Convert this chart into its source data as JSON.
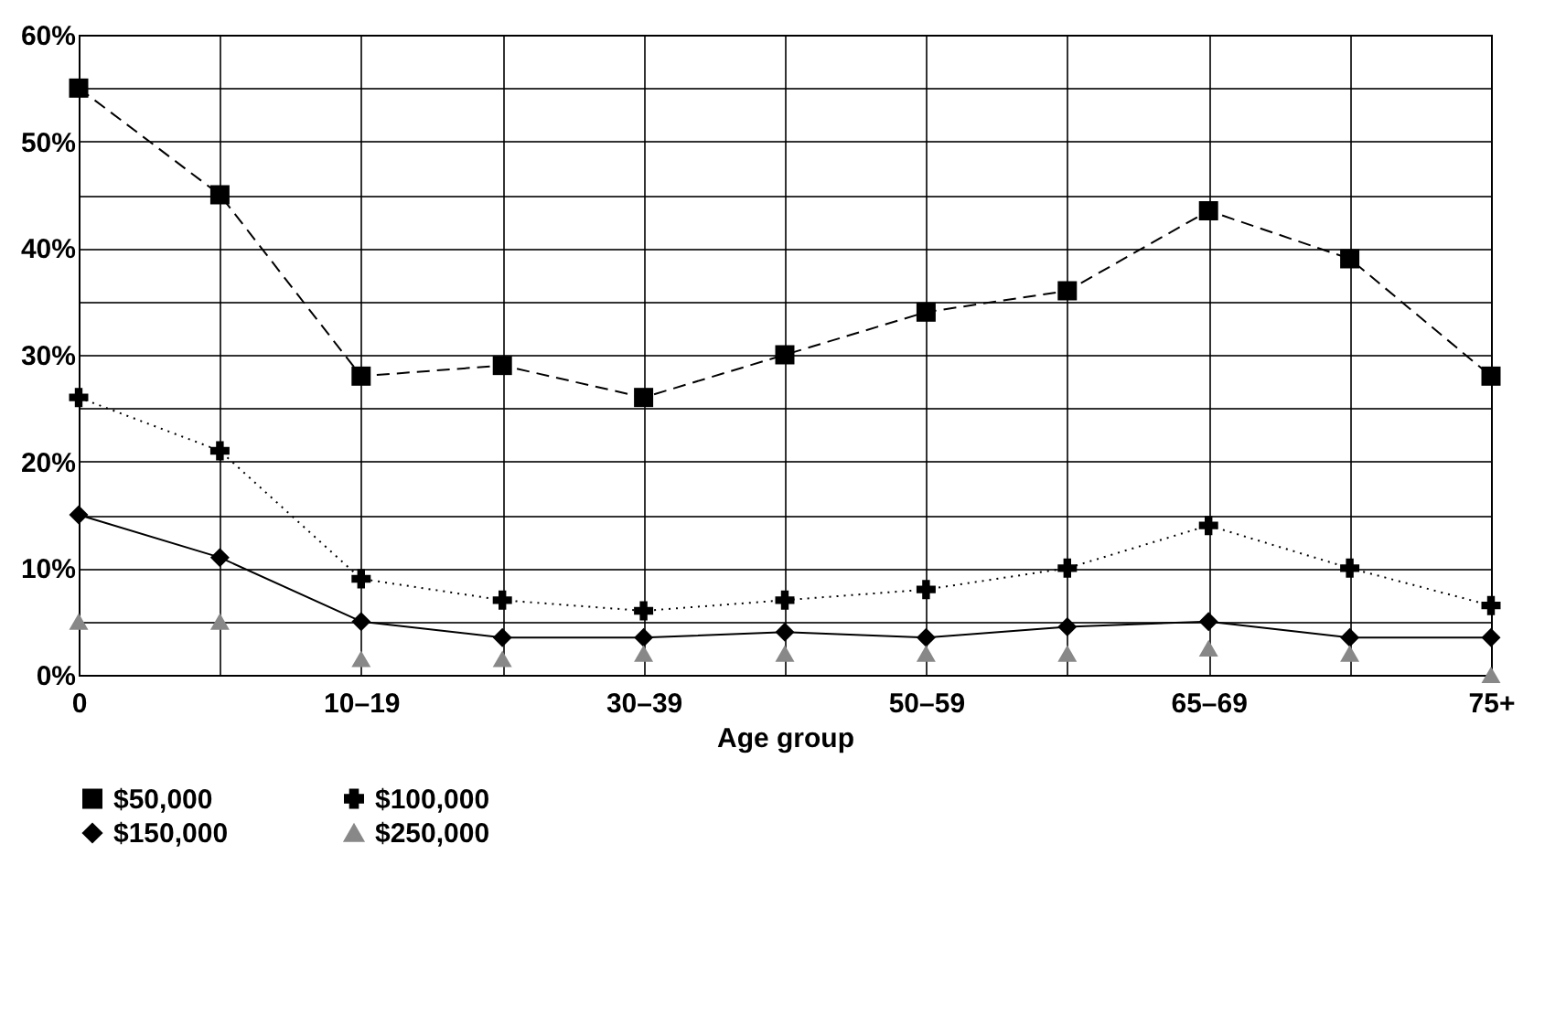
{
  "chart_data": {
    "type": "line",
    "xlabel": "Age group",
    "categories": [
      "0",
      null,
      "10–19",
      null,
      "30–39",
      null,
      "50–59",
      null,
      "65–69",
      null,
      "75+"
    ],
    "ylim": [
      0,
      60
    ],
    "yticks": [
      {
        "value": 0,
        "label": "0%"
      },
      {
        "value": 5,
        "label": null
      },
      {
        "value": 10,
        "label": "10%"
      },
      {
        "value": 15,
        "label": null
      },
      {
        "value": 20,
        "label": "20%"
      },
      {
        "value": 25,
        "label": null
      },
      {
        "value": 30,
        "label": "30%"
      },
      {
        "value": 35,
        "label": null
      },
      {
        "value": 40,
        "label": "40%"
      },
      {
        "value": 45,
        "label": null
      },
      {
        "value": 50,
        "label": "50%"
      },
      {
        "value": 55,
        "label": null
      },
      {
        "value": 60,
        "label": "60%"
      }
    ],
    "grid": true,
    "legend": "bottom",
    "series": [
      {
        "name": "$50,000",
        "color": "#000000",
        "marker": "square",
        "line_style": "dashed",
        "values": [
          55,
          45,
          28,
          29,
          26,
          30,
          34,
          36,
          43.5,
          39,
          28
        ]
      },
      {
        "name": "$100,000",
        "color": "#000000",
        "marker": "cross",
        "line_style": "dotted",
        "values": [
          26,
          21,
          9,
          7,
          6,
          7,
          8,
          10,
          14,
          10,
          6.5
        ]
      },
      {
        "name": "$150,000",
        "color": "#000000",
        "marker": "diamond",
        "line_style": "solid",
        "values": [
          15,
          11,
          5,
          3.5,
          3.5,
          4,
          3.5,
          4.5,
          5,
          3.5,
          3.5
        ]
      },
      {
        "name": "$250,000",
        "type": "scatter",
        "color": "#888888",
        "marker": "triangle",
        "values": [
          5,
          5,
          1.5,
          1.5,
          2,
          2,
          2,
          2,
          2.5,
          2,
          0
        ]
      }
    ]
  }
}
